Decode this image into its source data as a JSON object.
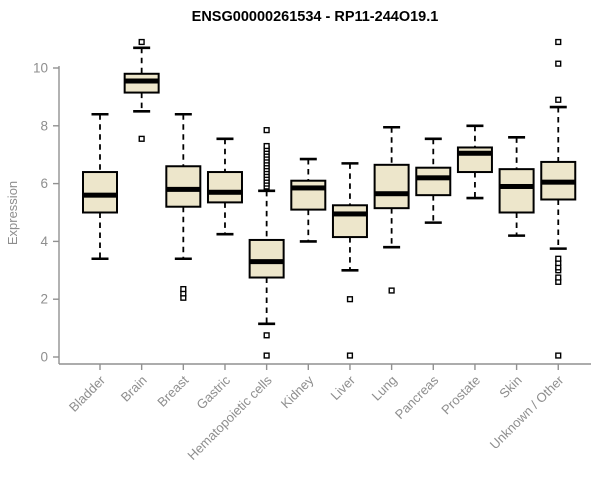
{
  "chart_data": {
    "type": "boxplot",
    "title": "ENSG00000261534 - RP11-244O19.1",
    "ylabel": "Expression",
    "xlabel": "",
    "ylim": [
      0,
      11
    ],
    "yticks": [
      0,
      2,
      4,
      6,
      8,
      10
    ],
    "grid": false,
    "legend": "none",
    "categories": [
      "Bladder",
      "Brain",
      "Breast",
      "Gastric",
      "Hematopoietic cells",
      "Kidney",
      "Liver",
      "Lung",
      "Pancreas",
      "Prostate",
      "Skin",
      "Unknown / Other"
    ],
    "series": [
      {
        "label": "Bladder",
        "whisker_low": 3.4,
        "q1": 5.0,
        "median": 5.6,
        "q3": 6.4,
        "whisker_high": 8.4,
        "outliers": []
      },
      {
        "label": "Brain",
        "whisker_low": 8.5,
        "q1": 9.15,
        "median": 9.55,
        "q3": 9.8,
        "whisker_high": 10.7,
        "outliers": [
          7.55,
          10.9
        ]
      },
      {
        "label": "Breast",
        "whisker_low": 3.4,
        "q1": 5.2,
        "median": 5.8,
        "q3": 6.6,
        "whisker_high": 8.4,
        "outliers": [
          2.05,
          2.2,
          2.35
        ]
      },
      {
        "label": "Gastric",
        "whisker_low": 4.25,
        "q1": 5.35,
        "median": 5.7,
        "q3": 6.4,
        "whisker_high": 7.55,
        "outliers": []
      },
      {
        "label": "Hematopoietic cells",
        "whisker_low": 1.15,
        "q1": 2.75,
        "median": 3.3,
        "q3": 4.05,
        "whisker_high": 5.75,
        "outliers": [
          0.05,
          0.75,
          5.9,
          6.0,
          6.1,
          6.2,
          6.3,
          6.4,
          6.5,
          6.6,
          6.7,
          6.8,
          6.9,
          7.0,
          7.1,
          7.2,
          7.3,
          7.85
        ]
      },
      {
        "label": "Kidney",
        "whisker_low": 4.0,
        "q1": 5.1,
        "median": 5.85,
        "q3": 6.1,
        "whisker_high": 6.85,
        "outliers": []
      },
      {
        "label": "Liver",
        "whisker_low": 3.0,
        "q1": 4.15,
        "median": 4.95,
        "q3": 5.25,
        "whisker_high": 6.7,
        "outliers": [
          0.05,
          2.0
        ]
      },
      {
        "label": "Lung",
        "whisker_low": 3.8,
        "q1": 5.15,
        "median": 5.65,
        "q3": 6.65,
        "whisker_high": 7.95,
        "outliers": [
          2.3
        ]
      },
      {
        "label": "Pancreas",
        "whisker_low": 4.65,
        "q1": 5.6,
        "median": 6.2,
        "q3": 6.55,
        "whisker_high": 7.55,
        "outliers": []
      },
      {
        "label": "Prostate",
        "whisker_low": 5.5,
        "q1": 6.4,
        "median": 7.05,
        "q3": 7.25,
        "whisker_high": 8.0,
        "outliers": []
      },
      {
        "label": "Skin",
        "whisker_low": 4.2,
        "q1": 5.0,
        "median": 5.9,
        "q3": 6.5,
        "whisker_high": 7.6,
        "outliers": []
      },
      {
        "label": "Unknown / Other",
        "whisker_low": 3.75,
        "q1": 5.45,
        "median": 6.05,
        "q3": 6.75,
        "whisker_high": 8.65,
        "outliers": [
          0.05,
          2.6,
          2.75,
          3.0,
          3.1,
          3.25,
          3.4,
          8.9,
          10.15,
          10.9
        ]
      }
    ],
    "colors": {
      "box_fill": "#EDE6CB",
      "box_stroke": "#000000",
      "median": "#000000",
      "whisker": "#000000",
      "outlier_stroke": "#000000",
      "outlier_fill": "#FFFFFF",
      "axis": "#919191",
      "tick_label": "#8E8E8E",
      "title": "#000000",
      "background": "#FFFFFF"
    }
  }
}
